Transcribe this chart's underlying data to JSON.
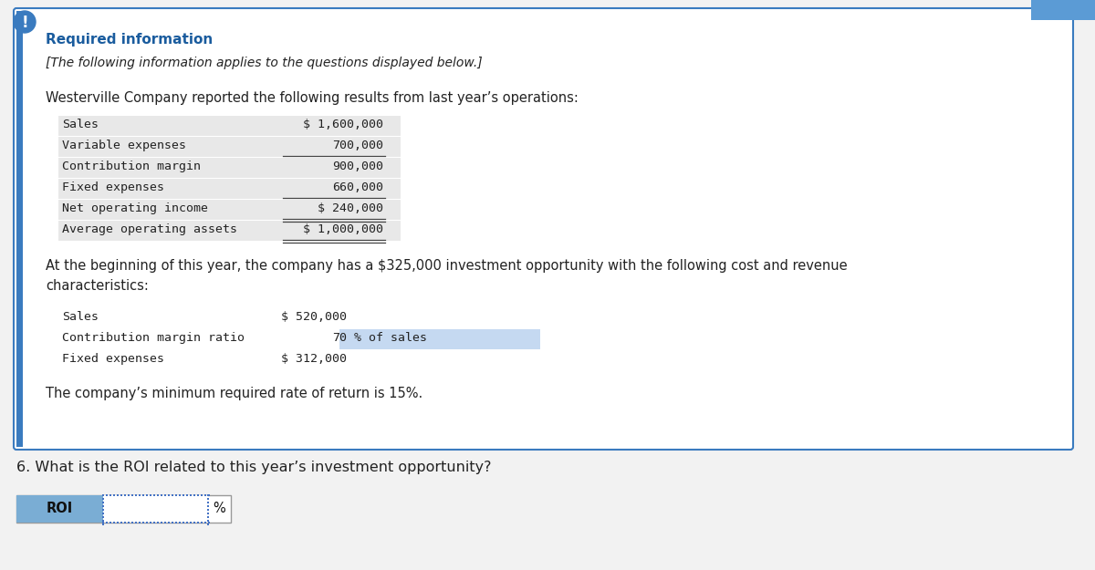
{
  "title_required": "Required information",
  "subtitle": "[The following information applies to the questions displayed below.]",
  "intro_text": "Westerville Company reported the following results from last year’s operations:",
  "table1_rows": [
    [
      "Sales",
      "$ 1,600,000"
    ],
    [
      "Variable expenses",
      "700,000"
    ],
    [
      "Contribution margin",
      "900,000"
    ],
    [
      "Fixed expenses",
      "660,000"
    ],
    [
      "Net operating income",
      "$ 240,000"
    ],
    [
      "Average operating assets",
      "$ 1,000,000"
    ]
  ],
  "table1_shade_rows": [
    0,
    1,
    2,
    3,
    4,
    5
  ],
  "table1_lines_after": [
    1,
    3,
    4,
    5
  ],
  "table1_double_lines": [
    4,
    5
  ],
  "middle_text_line1": "At the beginning of this year, the company has a $325,000 investment opportunity with the following cost and revenue",
  "middle_text_line2": "characteristics:",
  "table2_rows": [
    [
      "Sales",
      "$ 520,000",
      ""
    ],
    [
      "Contribution margin ratio",
      "70",
      "% of sales"
    ],
    [
      "Fixed expenses",
      "$ 312,000",
      ""
    ]
  ],
  "table2_highlight_row": 1,
  "footer_text": "The company’s minimum required rate of return is 15%.",
  "question_text": "6. What is the ROI related to this year’s investment opportunity?",
  "roi_label": "ROI",
  "percent_label": "%",
  "box_bg": "#ffffff",
  "box_border": "#3a7bbf",
  "required_color": "#1a5c9e",
  "table_bg_shaded": "#e8e8e8",
  "table_highlight_bg": "#c5d9f1",
  "input_box_bg": "#7aadd4",
  "main_bg": "#f2f2f2",
  "top_btn_color": "#5b9bd5",
  "font_mono": "monospace",
  "font_sans": "DejaVu Sans"
}
